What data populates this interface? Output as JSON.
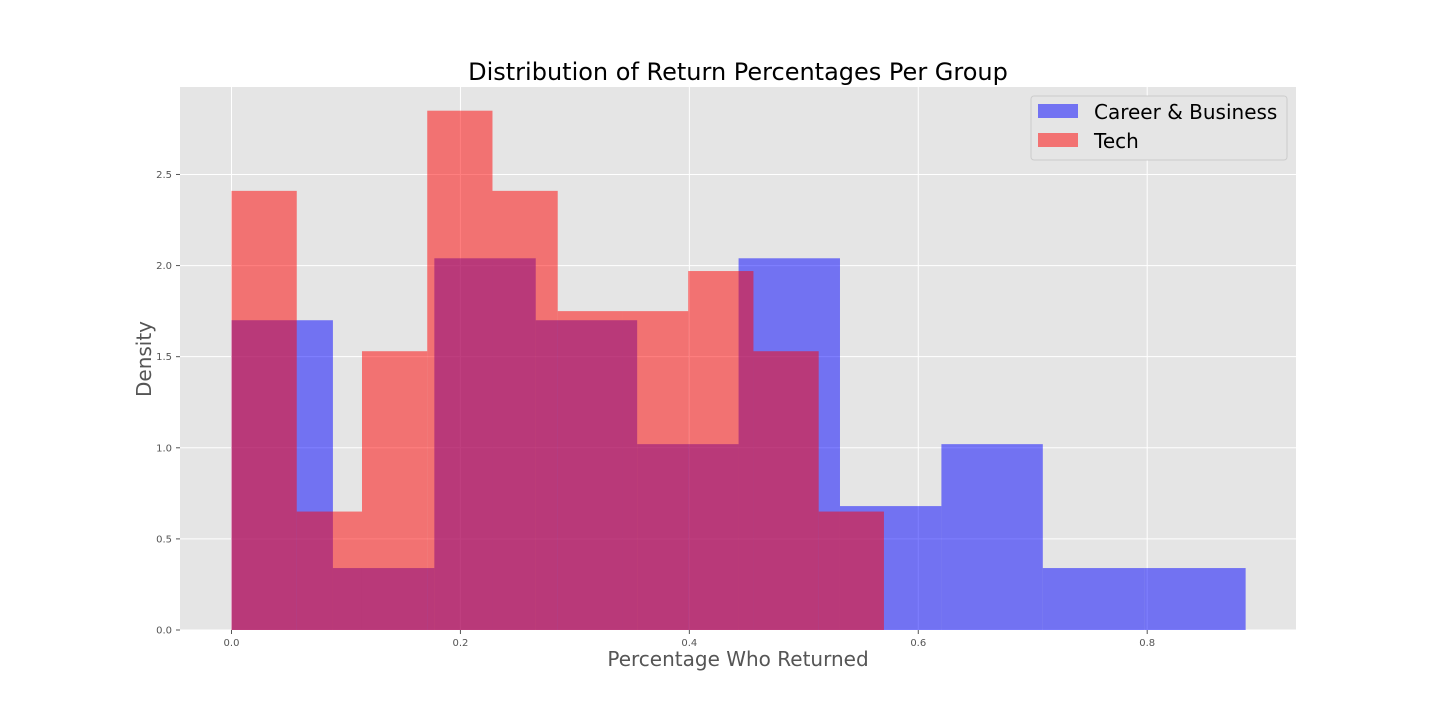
{
  "chart_data": {
    "type": "histogram",
    "title": "Distribution of Return Percentages Per Group",
    "xlabel": "Percentage Who Returned",
    "ylabel": "Density",
    "xlim": [
      -0.045,
      0.93
    ],
    "ylim": [
      0,
      2.98
    ],
    "xticks": [
      0.0,
      0.2,
      0.4,
      0.6,
      0.8
    ],
    "xtick_labels": [
      "0.0",
      "0.2",
      "0.4",
      "0.6",
      "0.8"
    ],
    "yticks": [
      0.0,
      0.5,
      1.0,
      1.5,
      2.0,
      2.5
    ],
    "ytick_labels": [
      "0.0",
      "0.5",
      "1.0",
      "1.5",
      "2.0",
      "2.5"
    ],
    "grid": true,
    "legend_position": "top-right",
    "background": "#e5e5e5",
    "series": [
      {
        "name": "Career & Business",
        "color": "#0000ff",
        "opacity": 0.5,
        "bin_edges": [
          0.0,
          0.0886,
          0.1772,
          0.2658,
          0.3544,
          0.443,
          0.5316,
          0.6202,
          0.7088,
          0.7974,
          0.886
        ],
        "values": [
          1.7,
          0.34,
          2.04,
          1.7,
          1.02,
          2.04,
          0.68,
          1.02,
          0.34,
          0.34
        ]
      },
      {
        "name": "Tech",
        "color": "#ff0000",
        "opacity": 0.5,
        "bin_edges": [
          0.0,
          0.057,
          0.114,
          0.171,
          0.228,
          0.285,
          0.342,
          0.399,
          0.456,
          0.513,
          0.57
        ],
        "values": [
          2.41,
          0.65,
          1.53,
          2.85,
          2.41,
          1.75,
          1.75,
          1.97,
          1.53,
          0.65
        ]
      }
    ]
  }
}
